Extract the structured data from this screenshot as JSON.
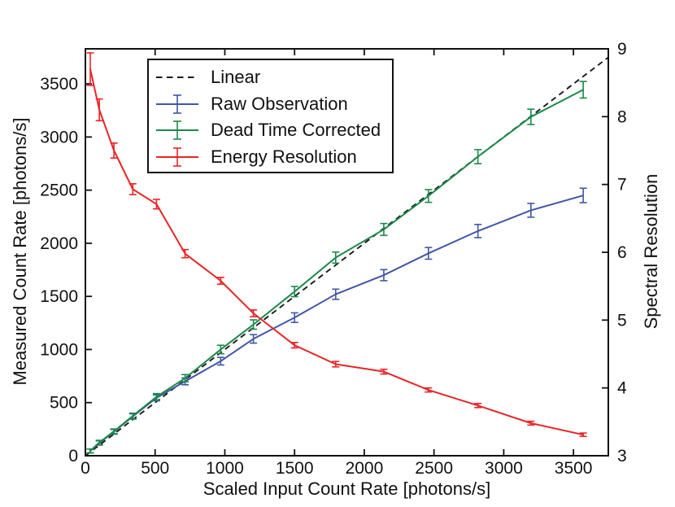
{
  "chart_data": {
    "type": "line",
    "title": "",
    "xlabel": "Scaled Input Count Rate [photons/s]",
    "ylabel_left": "Measured Count Rate [photons/s]",
    "ylabel_right": "Spectral Resolution",
    "xlim": [
      0,
      3750
    ],
    "ylim_left": [
      0,
      3830
    ],
    "ylim_right": [
      3,
      9
    ],
    "xticks": [
      0,
      500,
      1000,
      1500,
      2000,
      2500,
      3000,
      3500
    ],
    "yticks_left": [
      0,
      500,
      1000,
      1500,
      2000,
      2500,
      3000,
      3500
    ],
    "yticks_right": [
      3,
      4,
      5,
      6,
      7,
      8,
      9
    ],
    "grid": false,
    "legend_position": "upper-left",
    "ink_color": "#111111",
    "x": [
      35,
      100,
      205,
      340,
      510,
      715,
      970,
      1205,
      1500,
      1795,
      2140,
      2460,
      2815,
      3195,
      3570
    ],
    "series": [
      {
        "name": "Linear",
        "style": "dashed",
        "axis": "left",
        "color": "#1a1a1a",
        "x": [
          0,
          3750
        ],
        "y": [
          0,
          3750
        ]
      },
      {
        "name": "Raw Observation",
        "style": "errorbar-line",
        "axis": "left",
        "color": "#4056A7",
        "y": [
          45,
          120,
          225,
          370,
          545,
          700,
          890,
          1100,
          1300,
          1520,
          1700,
          1905,
          2115,
          2310,
          2450
        ],
        "yerr": [
          18,
          20,
          22,
          25,
          28,
          32,
          36,
          40,
          45,
          48,
          52,
          55,
          62,
          65,
          68
        ]
      },
      {
        "name": "Dead Time Corrected",
        "style": "errorbar-line",
        "axis": "left",
        "color": "#1B8A4A",
        "y": [
          45,
          125,
          230,
          375,
          555,
          730,
          1000,
          1235,
          1545,
          1865,
          2130,
          2445,
          2815,
          3190,
          3445
        ],
        "yerr": [
          18,
          20,
          22,
          26,
          30,
          34,
          40,
          44,
          48,
          52,
          56,
          60,
          66,
          72,
          78
        ]
      },
      {
        "name": "Energy Resolution",
        "style": "errorbar-line",
        "axis": "right",
        "color": "#E92528",
        "y": [
          8.7,
          8.1,
          7.5,
          6.93,
          6.71,
          5.98,
          5.58,
          5.1,
          4.63,
          4.35,
          4.24,
          3.97,
          3.74,
          3.48,
          3.31
        ],
        "yerr": [
          0.24,
          0.16,
          0.11,
          0.08,
          0.07,
          0.06,
          0.05,
          0.05,
          0.04,
          0.04,
          0.035,
          0.03,
          0.03,
          0.028,
          0.025
        ]
      }
    ]
  }
}
